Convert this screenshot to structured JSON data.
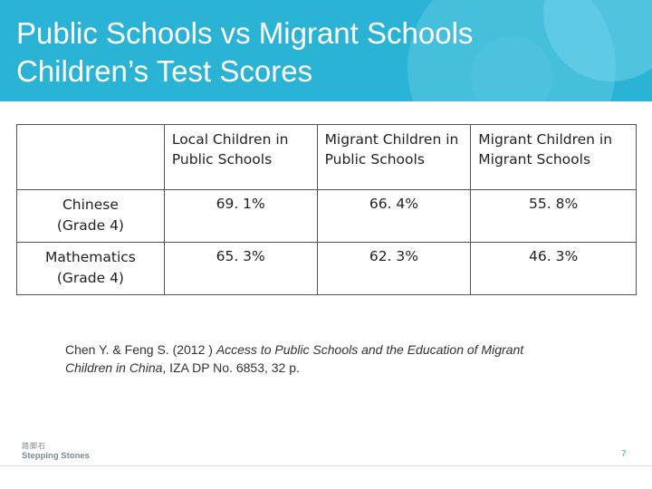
{
  "title": {
    "line1": "Public Schools vs Migrant Schools",
    "line2": "Children’s Test Scores"
  },
  "table": {
    "headers": [
      "",
      "Local Children in Public Schools",
      "Migrant Children in Public Schools",
      "Migrant Children in Migrant Schools"
    ],
    "rows": [
      {
        "label_line1": "Chinese",
        "label_line2": "(Grade 4)",
        "values": [
          "69. 1%",
          "66. 4%",
          "55. 8%"
        ]
      },
      {
        "label_line1": "Mathematics",
        "label_line2": "(Grade 4)",
        "values": [
          "65. 3%",
          "62. 3%",
          "46. 3%"
        ]
      }
    ]
  },
  "citation": {
    "prefix": "Chen Y. & Feng S. (2012 ) ",
    "title": "Access to Public Schools and the Education of Migrant Children in China",
    "suffix": ", IZA DP No. 6853, 32 p."
  },
  "footer": {
    "logo_cn": "踏脚石",
    "logo_en": "Stepping Stones",
    "page_number": "7"
  },
  "colors": {
    "header_band": "#2bb3d6",
    "title_text": "#ffffff",
    "border": "#555555"
  }
}
